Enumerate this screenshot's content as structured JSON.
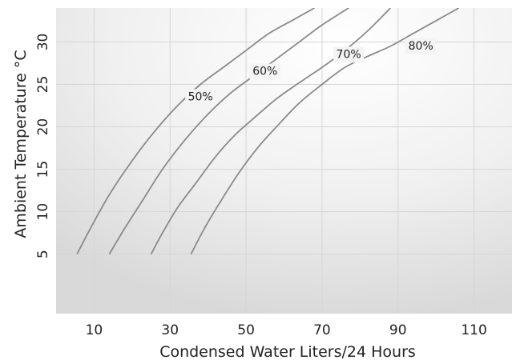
{
  "chart_data": {
    "type": "line",
    "xlabel": "Condensed Water Liters/24 Hours",
    "ylabel": "Ambient Temperature °C",
    "xlim": [
      0,
      120
    ],
    "ylim": [
      -2,
      34
    ],
    "xticks": [
      10,
      30,
      50,
      70,
      90,
      110
    ],
    "yticks": [
      5,
      10,
      15,
      20,
      25,
      30
    ],
    "grid": true,
    "legend": "none",
    "series": [
      {
        "name": "50%",
        "x": [
          5.5,
          9,
          14,
          20,
          26,
          32,
          38,
          44,
          50,
          56,
          62,
          68
        ],
        "y": [
          5,
          8,
          12,
          16,
          19.5,
          22.5,
          25,
          27,
          29,
          31,
          32.5,
          34
        ],
        "label_at": [
          38,
          23.5
        ]
      },
      {
        "name": "60%",
        "x": [
          14,
          18,
          23,
          28,
          34,
          40,
          46,
          52,
          58,
          64,
          70,
          77
        ],
        "y": [
          5,
          8,
          11.5,
          15,
          18.5,
          21.5,
          24,
          26,
          28,
          30,
          32,
          34
        ],
        "label_at": [
          55,
          26.5
        ]
      },
      {
        "name": "70%",
        "x": [
          25,
          28,
          32,
          37,
          42,
          47,
          52,
          58,
          64,
          70,
          76,
          82,
          88
        ],
        "y": [
          5,
          7.5,
          10.5,
          13.5,
          16.5,
          19,
          21,
          23.3,
          25.2,
          27,
          29,
          31.3,
          34
        ],
        "label_at": [
          77,
          28.5
        ]
      },
      {
        "name": "80%",
        "x": [
          35.5,
          39,
          43,
          48,
          53,
          58,
          64,
          70,
          76,
          82,
          88,
          94,
          100,
          106
        ],
        "y": [
          5,
          8,
          11,
          14.5,
          17.5,
          20,
          22.8,
          25,
          27,
          28.3,
          29.5,
          31,
          32.5,
          34
        ],
        "label_at": [
          96,
          29.5
        ]
      }
    ]
  }
}
